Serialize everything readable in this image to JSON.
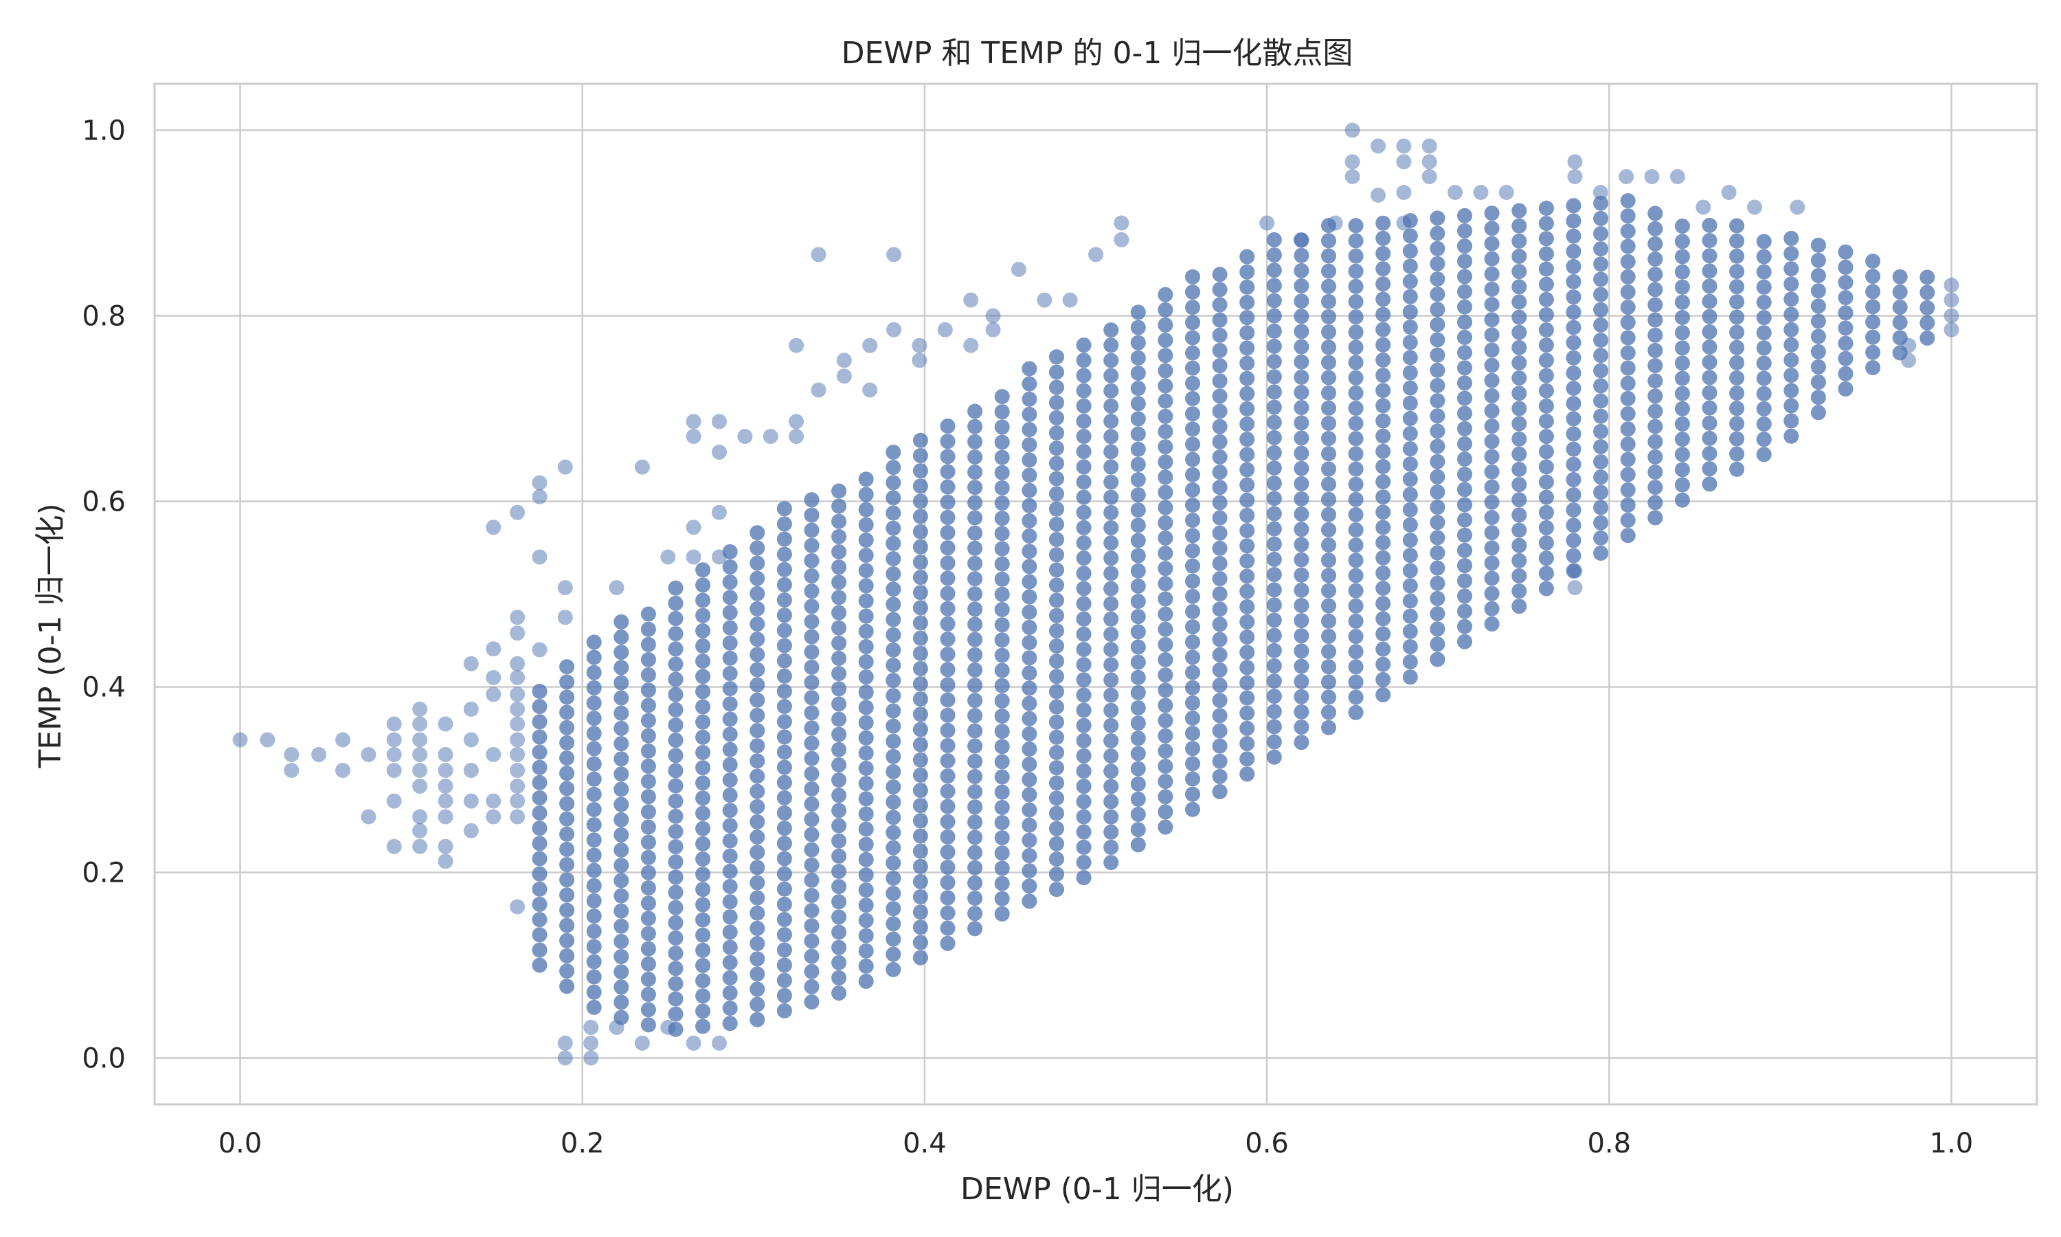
{
  "chart_data": {
    "type": "scatter",
    "title": "DEWP 和 TEMP 的 0-1 归一化散点图",
    "xlabel": "DEWP (0-1 归一化)",
    "ylabel": "TEMP (0-1 归一化)",
    "xlim": [
      -0.05,
      1.05
    ],
    "ylim": [
      -0.05,
      1.05
    ],
    "xticks": [
      "0.0",
      "0.2",
      "0.4",
      "0.6",
      "0.8",
      "1.0"
    ],
    "yticks": [
      "0.0",
      "0.2",
      "0.4",
      "0.6",
      "0.8",
      "1.0"
    ],
    "grid": true,
    "legend": "none",
    "colors": {
      "marker": "#4c72b0",
      "grid": "#cccccc",
      "frame": "#cccccc",
      "background": "#ffffff"
    },
    "marker_alpha": 0.5,
    "x_step": 0.0159,
    "y_step": 0.0164,
    "bands": [
      {
        "x": 0.175,
        "ylo": 0.1,
        "yhi": 0.41
      },
      {
        "x": 0.21,
        "ylo": 0.05,
        "yhi": 0.47
      },
      {
        "x": 0.25,
        "ylo": 0.03,
        "yhi": 0.5
      },
      {
        "x": 0.3,
        "ylo": 0.04,
        "yhi": 0.58
      },
      {
        "x": 0.35,
        "ylo": 0.07,
        "yhi": 0.62
      },
      {
        "x": 0.4,
        "ylo": 0.11,
        "yhi": 0.68
      },
      {
        "x": 0.45,
        "ylo": 0.16,
        "yhi": 0.73
      },
      {
        "x": 0.5,
        "ylo": 0.2,
        "yhi": 0.79
      },
      {
        "x": 0.55,
        "ylo": 0.26,
        "yhi": 0.84
      },
      {
        "x": 0.6,
        "ylo": 0.32,
        "yhi": 0.88
      },
      {
        "x": 0.65,
        "ylo": 0.37,
        "yhi": 0.91
      },
      {
        "x": 0.7,
        "ylo": 0.43,
        "yhi": 0.92
      },
      {
        "x": 0.75,
        "ylo": 0.49,
        "yhi": 0.93
      },
      {
        "x": 0.8,
        "ylo": 0.55,
        "yhi": 0.93
      },
      {
        "x": 0.85,
        "ylo": 0.61,
        "yhi": 0.91
      },
      {
        "x": 0.9,
        "ylo": 0.66,
        "yhi": 0.89
      },
      {
        "x": 0.95,
        "ylo": 0.74,
        "yhi": 0.87
      },
      {
        "x": 1.0,
        "ylo": 0.79,
        "yhi": 0.84
      }
    ],
    "outliers": [
      [
        0.0,
        0.343
      ],
      [
        0.016,
        0.343
      ],
      [
        0.03,
        0.31
      ],
      [
        0.03,
        0.327
      ],
      [
        0.046,
        0.327
      ],
      [
        0.06,
        0.31
      ],
      [
        0.06,
        0.343
      ],
      [
        0.075,
        0.26
      ],
      [
        0.075,
        0.327
      ],
      [
        0.09,
        0.228
      ],
      [
        0.09,
        0.277
      ],
      [
        0.09,
        0.31
      ],
      [
        0.09,
        0.327
      ],
      [
        0.09,
        0.343
      ],
      [
        0.09,
        0.36
      ],
      [
        0.105,
        0.228
      ],
      [
        0.105,
        0.245
      ],
      [
        0.105,
        0.26
      ],
      [
        0.105,
        0.293
      ],
      [
        0.105,
        0.31
      ],
      [
        0.105,
        0.327
      ],
      [
        0.105,
        0.343
      ],
      [
        0.105,
        0.36
      ],
      [
        0.105,
        0.376
      ],
      [
        0.12,
        0.212
      ],
      [
        0.12,
        0.228
      ],
      [
        0.12,
        0.26
      ],
      [
        0.12,
        0.277
      ],
      [
        0.12,
        0.293
      ],
      [
        0.12,
        0.31
      ],
      [
        0.12,
        0.327
      ],
      [
        0.12,
        0.36
      ],
      [
        0.135,
        0.245
      ],
      [
        0.135,
        0.277
      ],
      [
        0.135,
        0.31
      ],
      [
        0.135,
        0.343
      ],
      [
        0.135,
        0.376
      ],
      [
        0.135,
        0.425
      ],
      [
        0.148,
        0.26
      ],
      [
        0.148,
        0.277
      ],
      [
        0.148,
        0.327
      ],
      [
        0.148,
        0.392
      ],
      [
        0.148,
        0.41
      ],
      [
        0.148,
        0.441
      ],
      [
        0.148,
        0.572
      ],
      [
        0.162,
        0.163
      ],
      [
        0.162,
        0.26
      ],
      [
        0.162,
        0.277
      ],
      [
        0.162,
        0.293
      ],
      [
        0.162,
        0.31
      ],
      [
        0.162,
        0.327
      ],
      [
        0.162,
        0.343
      ],
      [
        0.162,
        0.36
      ],
      [
        0.162,
        0.376
      ],
      [
        0.162,
        0.392
      ],
      [
        0.162,
        0.41
      ],
      [
        0.162,
        0.425
      ],
      [
        0.162,
        0.458
      ],
      [
        0.162,
        0.475
      ],
      [
        0.162,
        0.588
      ],
      [
        0.175,
        0.44
      ],
      [
        0.175,
        0.54
      ],
      [
        0.175,
        0.605
      ],
      [
        0.175,
        0.62
      ],
      [
        0.19,
        0.0
      ],
      [
        0.19,
        0.016
      ],
      [
        0.19,
        0.475
      ],
      [
        0.19,
        0.507
      ],
      [
        0.19,
        0.637
      ],
      [
        0.205,
        0.0
      ],
      [
        0.205,
        0.016
      ],
      [
        0.205,
        0.033
      ],
      [
        0.22,
        0.033
      ],
      [
        0.22,
        0.507
      ],
      [
        0.235,
        0.016
      ],
      [
        0.235,
        0.637
      ],
      [
        0.25,
        0.033
      ],
      [
        0.25,
        0.54
      ],
      [
        0.265,
        0.016
      ],
      [
        0.265,
        0.54
      ],
      [
        0.265,
        0.572
      ],
      [
        0.265,
        0.67
      ],
      [
        0.265,
        0.686
      ],
      [
        0.28,
        0.016
      ],
      [
        0.28,
        0.54
      ],
      [
        0.28,
        0.588
      ],
      [
        0.28,
        0.653
      ],
      [
        0.28,
        0.686
      ],
      [
        0.295,
        0.67
      ],
      [
        0.31,
        0.67
      ],
      [
        0.325,
        0.67
      ],
      [
        0.325,
        0.686
      ],
      [
        0.325,
        0.768
      ],
      [
        0.338,
        0.866
      ],
      [
        0.338,
        0.72
      ],
      [
        0.353,
        0.735
      ],
      [
        0.353,
        0.752
      ],
      [
        0.368,
        0.72
      ],
      [
        0.368,
        0.768
      ],
      [
        0.382,
        0.866
      ],
      [
        0.382,
        0.785
      ],
      [
        0.397,
        0.752
      ],
      [
        0.397,
        0.768
      ],
      [
        0.412,
        0.785
      ],
      [
        0.427,
        0.768
      ],
      [
        0.427,
        0.817
      ],
      [
        0.44,
        0.785
      ],
      [
        0.44,
        0.8
      ],
      [
        0.455,
        0.85
      ],
      [
        0.47,
        0.817
      ],
      [
        0.485,
        0.817
      ],
      [
        0.5,
        0.866
      ],
      [
        0.515,
        0.882
      ],
      [
        0.515,
        0.9
      ],
      [
        0.6,
        0.9
      ],
      [
        0.62,
        0.882
      ],
      [
        0.64,
        0.9
      ],
      [
        0.65,
        0.95
      ],
      [
        0.65,
        0.966
      ],
      [
        0.65,
        1.0
      ],
      [
        0.665,
        0.93
      ],
      [
        0.665,
        0.983
      ],
      [
        0.68,
        0.9
      ],
      [
        0.68,
        0.933
      ],
      [
        0.68,
        0.966
      ],
      [
        0.68,
        0.983
      ],
      [
        0.695,
        0.95
      ],
      [
        0.695,
        0.966
      ],
      [
        0.695,
        0.983
      ],
      [
        0.71,
        0.933
      ],
      [
        0.725,
        0.933
      ],
      [
        0.74,
        0.933
      ],
      [
        0.78,
        0.95
      ],
      [
        0.78,
        0.966
      ],
      [
        0.795,
        0.933
      ],
      [
        0.81,
        0.95
      ],
      [
        0.825,
        0.95
      ],
      [
        0.84,
        0.95
      ],
      [
        0.855,
        0.917
      ],
      [
        0.87,
        0.933
      ],
      [
        0.885,
        0.917
      ],
      [
        0.91,
        0.917
      ],
      [
        0.78,
        0.507
      ],
      [
        0.78,
        0.525
      ],
      [
        0.975,
        0.752
      ],
      [
        0.975,
        0.768
      ],
      [
        1.0,
        0.785
      ],
      [
        1.0,
        0.8
      ],
      [
        1.0,
        0.817
      ],
      [
        1.0,
        0.833
      ]
    ]
  }
}
